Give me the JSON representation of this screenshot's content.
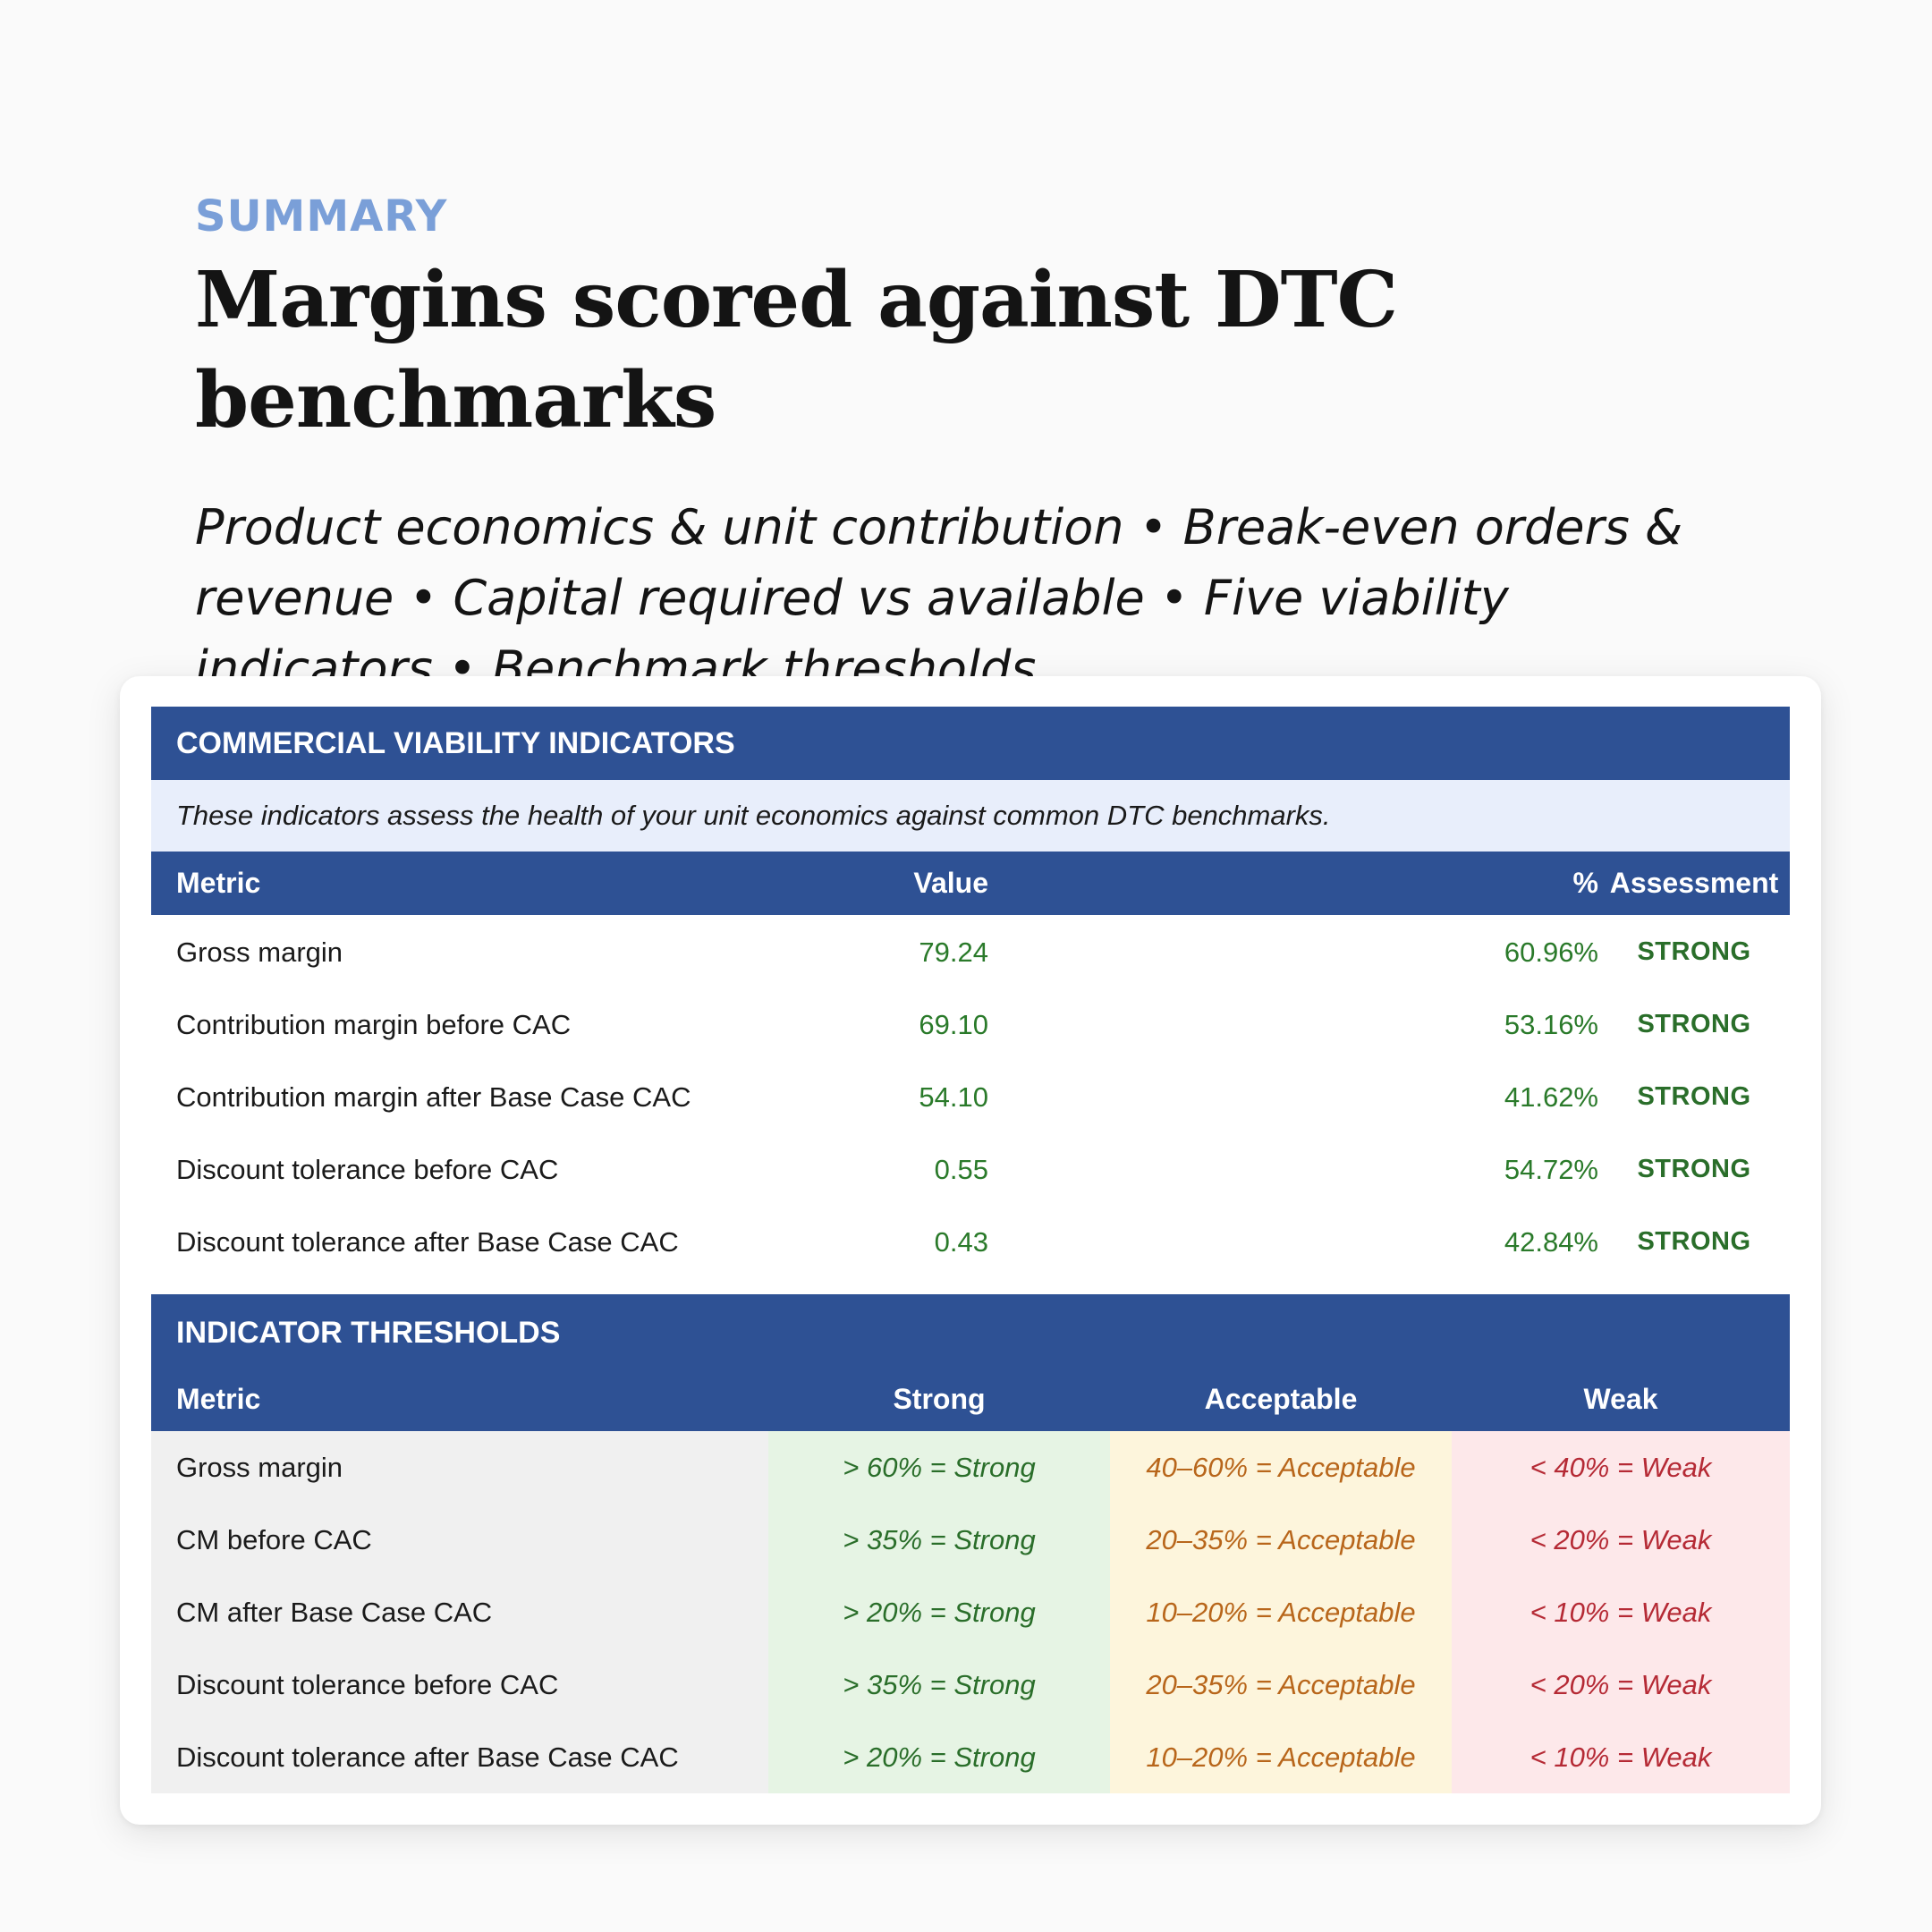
{
  "header": {
    "eyebrow": "SUMMARY",
    "title": "Margins scored against DTC benchmarks",
    "subtitle": "Product economics & unit contribution • Break-even orders & revenue • Capital required vs available • Five viability indicators • Benchmark thresholds"
  },
  "indicators": {
    "section_title": "COMMERCIAL VIABILITY INDICATORS",
    "note": "These indicators assess the health of your unit economics against common DTC benchmarks.",
    "columns": {
      "metric": "Metric",
      "value": "Value",
      "pct": "%",
      "assessment": "Assessment"
    },
    "rows": [
      {
        "metric": "Gross margin",
        "value": "79.24",
        "pct": "60.96%",
        "assessment": "STRONG"
      },
      {
        "metric": "Contribution margin before CAC",
        "value": "69.10",
        "pct": "53.16%",
        "assessment": "STRONG"
      },
      {
        "metric": "Contribution margin after Base Case CAC",
        "value": "54.10",
        "pct": "41.62%",
        "assessment": "STRONG"
      },
      {
        "metric": "Discount tolerance before CAC",
        "value": "0.55",
        "pct": "54.72%",
        "assessment": "STRONG"
      },
      {
        "metric": "Discount tolerance after Base Case CAC",
        "value": "0.43",
        "pct": "42.84%",
        "assessment": "STRONG"
      }
    ]
  },
  "thresholds": {
    "section_title": "INDICATOR THRESHOLDS",
    "columns": {
      "metric": "Metric",
      "strong": "Strong",
      "acceptable": "Acceptable",
      "weak": "Weak"
    },
    "rows": [
      {
        "metric": "Gross margin",
        "strong": "> 60% = Strong",
        "acceptable": "40–60% = Acceptable",
        "weak": "< 40% = Weak"
      },
      {
        "metric": "CM before CAC",
        "strong": "> 35% = Strong",
        "acceptable": "20–35% = Acceptable",
        "weak": "< 20% = Weak"
      },
      {
        "metric": "CM after Base Case CAC",
        "strong": "> 20% = Strong",
        "acceptable": "10–20% = Acceptable",
        "weak": "< 10% = Weak"
      },
      {
        "metric": "Discount tolerance before CAC",
        "strong": "> 35% = Strong",
        "acceptable": "20–35% = Acceptable",
        "weak": "< 20% = Weak"
      },
      {
        "metric": "Discount tolerance after Base Case CAC",
        "strong": "> 20% = Strong",
        "acceptable": "10–20% = Acceptable",
        "weak": "< 10% = Weak"
      }
    ]
  },
  "colors": {
    "band": "#2e5194",
    "eyebrow": "#7a9fd8",
    "strong": "#2a6e2a",
    "acceptable": "#b8661b",
    "weak": "#b52a35"
  }
}
